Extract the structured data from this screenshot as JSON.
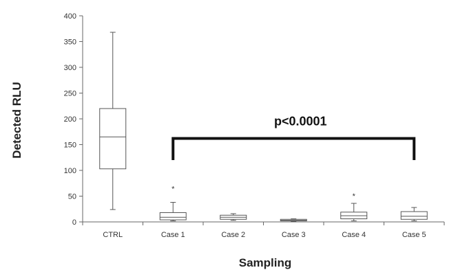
{
  "chart_data": {
    "type": "box",
    "xlabel": "Sampling",
    "ylabel": "Detected RLU",
    "ylim": [
      0,
      400
    ],
    "yticks": [
      0,
      50,
      100,
      150,
      200,
      250,
      300,
      350,
      400
    ],
    "grid": false,
    "categories": [
      "CTRL",
      "Case 1",
      "Case 2",
      "Case 3",
      "Case 4",
      "Case 5"
    ],
    "boxes": [
      {
        "label": "CTRL",
        "min": 24,
        "q1": 103,
        "median": 165,
        "q3": 220,
        "max": 368,
        "outliers": []
      },
      {
        "label": "Case 1",
        "min": 2,
        "q1": 4,
        "median": 9,
        "q3": 18,
        "max": 38,
        "outliers": [
          65
        ]
      },
      {
        "label": "Case 2",
        "min": 3,
        "q1": 5,
        "median": 9,
        "q3": 13,
        "max": 16,
        "outliers": []
      },
      {
        "label": "Case 3",
        "min": 1,
        "q1": 2,
        "median": 3,
        "q3": 5,
        "max": 6,
        "outliers": []
      },
      {
        "label": "Case 4",
        "min": 2,
        "q1": 6,
        "median": 12,
        "q3": 19,
        "max": 36,
        "outliers": [
          51
        ]
      },
      {
        "label": "Case 5",
        "min": 2,
        "q1": 5,
        "median": 11,
        "q3": 20,
        "max": 28,
        "outliers": []
      }
    ],
    "annotations": [
      {
        "text": "p<0.0001",
        "bracket_from": "Case 1",
        "bracket_to": "Case 5",
        "bracket_y": 162,
        "bracket_drop": 120
      }
    ]
  }
}
